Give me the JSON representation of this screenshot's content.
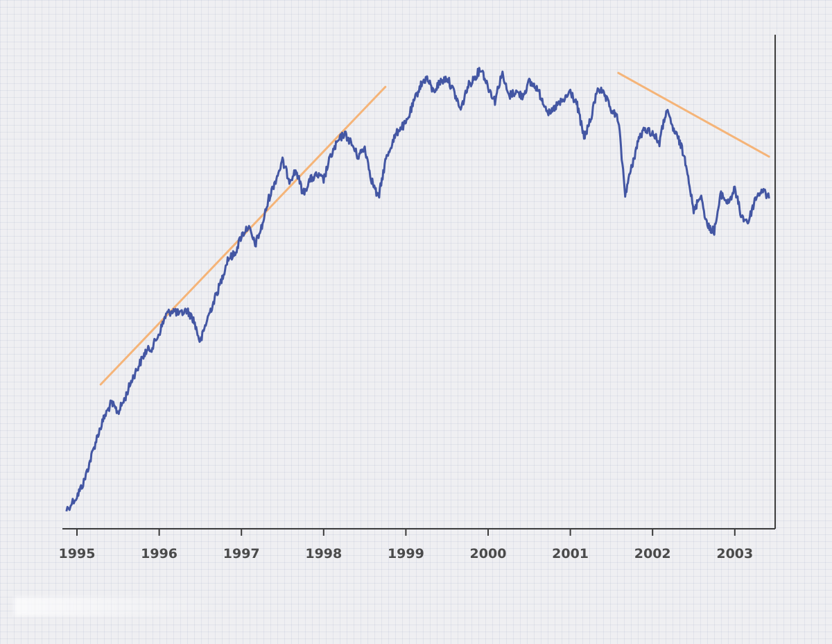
{
  "chart_data": {
    "type": "line",
    "title": "",
    "xlabel": "",
    "ylabel": "",
    "grid": false,
    "legend": "none",
    "x_range": [
      "1994-11",
      "2003-06"
    ],
    "y_range": [
      0,
      100
    ],
    "x_ticks": [
      "1995",
      "1996",
      "1997",
      "1998",
      "1999",
      "2000",
      "2001",
      "2002",
      "2003"
    ],
    "y_ticks": [],
    "series": [
      {
        "color": "#4356a3",
        "values_relative": true,
        "points": [
          [
            "1994-11-15",
            3
          ],
          [
            "1995-01-01",
            6
          ],
          [
            "1995-02-01",
            9
          ],
          [
            "1995-03-01",
            14
          ],
          [
            "1995-04-01",
            19
          ],
          [
            "1995-05-01",
            23
          ],
          [
            "1995-06-01",
            26
          ],
          [
            "1995-07-01",
            24
          ],
          [
            "1995-08-01",
            27
          ],
          [
            "1995-09-01",
            31
          ],
          [
            "1995-10-01",
            34
          ],
          [
            "1995-11-01",
            37
          ],
          [
            "1995-12-01",
            38
          ],
          [
            "1996-01-01",
            41
          ],
          [
            "1996-02-01",
            45
          ],
          [
            "1996-03-01",
            46
          ],
          [
            "1996-04-01",
            45
          ],
          [
            "1996-05-01",
            46
          ],
          [
            "1996-06-01",
            44
          ],
          [
            "1996-07-01",
            39
          ],
          [
            "1996-08-01",
            44
          ],
          [
            "1996-09-01",
            48
          ],
          [
            "1996-10-01",
            52
          ],
          [
            "1996-11-01",
            57
          ],
          [
            "1996-12-01",
            58
          ],
          [
            "1997-01-01",
            62
          ],
          [
            "1997-02-01",
            64
          ],
          [
            "1997-03-01",
            60
          ],
          [
            "1997-04-01",
            64
          ],
          [
            "1997-05-01",
            70
          ],
          [
            "1997-06-01",
            74
          ],
          [
            "1997-07-01",
            78
          ],
          [
            "1997-08-01",
            74
          ],
          [
            "1997-09-01",
            76
          ],
          [
            "1997-10-01",
            71
          ],
          [
            "1997-11-01",
            74
          ],
          [
            "1997-12-01",
            75
          ],
          [
            "1998-01-01",
            74
          ],
          [
            "1998-02-01",
            79
          ],
          [
            "1998-03-01",
            82
          ],
          [
            "1998-04-01",
            84
          ],
          [
            "1998-05-01",
            82
          ],
          [
            "1998-06-01",
            79
          ],
          [
            "1998-07-01",
            81
          ],
          [
            "1998-08-01",
            74
          ],
          [
            "1998-09-01",
            70
          ],
          [
            "1998-10-01",
            78
          ],
          [
            "1998-11-01",
            82
          ],
          [
            "1998-12-01",
            85
          ],
          [
            "1999-01-01",
            86
          ],
          [
            "1999-02-01",
            90
          ],
          [
            "1999-03-01",
            94
          ],
          [
            "1999-04-01",
            96
          ],
          [
            "1999-05-01",
            93
          ],
          [
            "1999-06-01",
            95
          ],
          [
            "1999-07-01",
            96
          ],
          [
            "1999-08-01",
            93
          ],
          [
            "1999-09-01",
            89
          ],
          [
            "1999-10-01",
            94
          ],
          [
            "1999-11-01",
            96
          ],
          [
            "1999-12-01",
            98
          ],
          [
            "2000-01-01",
            94
          ],
          [
            "2000-02-01",
            91
          ],
          [
            "2000-03-01",
            97
          ],
          [
            "2000-04-01",
            92
          ],
          [
            "2000-05-01",
            93
          ],
          [
            "2000-06-01",
            92
          ],
          [
            "2000-07-01",
            95
          ],
          [
            "2000-08-01",
            94
          ],
          [
            "2000-09-01",
            91
          ],
          [
            "2000-10-01",
            88
          ],
          [
            "2000-11-01",
            90
          ],
          [
            "2000-12-01",
            91
          ],
          [
            "2001-01-01",
            93
          ],
          [
            "2001-02-01",
            90
          ],
          [
            "2001-03-01",
            83
          ],
          [
            "2001-04-01",
            87
          ],
          [
            "2001-05-01",
            94
          ],
          [
            "2001-06-01",
            92
          ],
          [
            "2001-07-01",
            89
          ],
          [
            "2001-08-01",
            87
          ],
          [
            "2001-09-01",
            71
          ],
          [
            "2001-10-01",
            77
          ],
          [
            "2001-11-01",
            83
          ],
          [
            "2001-12-01",
            85
          ],
          [
            "2002-01-01",
            84
          ],
          [
            "2002-02-01",
            82
          ],
          [
            "2002-03-01",
            89
          ],
          [
            "2002-04-01",
            85
          ],
          [
            "2002-05-01",
            82
          ],
          [
            "2002-06-01",
            77
          ],
          [
            "2002-07-01",
            67
          ],
          [
            "2002-08-01",
            71
          ],
          [
            "2002-09-01",
            64
          ],
          [
            "2002-10-01",
            63
          ],
          [
            "2002-11-01",
            71
          ],
          [
            "2002-12-01",
            69
          ],
          [
            "2003-01-01",
            72
          ],
          [
            "2003-02-01",
            66
          ],
          [
            "2003-03-01",
            65
          ],
          [
            "2003-04-01",
            70
          ],
          [
            "2003-05-01",
            72
          ],
          [
            "2003-06-01",
            70
          ]
        ]
      }
    ],
    "annotations": [
      {
        "type": "trend-line",
        "color": "#f5b478",
        "from": [
          "1995-04-15",
          30
        ],
        "to": [
          "1998-10-01",
          94
        ]
      },
      {
        "type": "trend-line",
        "color": "#f5b478",
        "from": [
          "2001-08-01",
          97
        ],
        "to": [
          "2003-06-01",
          79
        ]
      }
    ]
  }
}
